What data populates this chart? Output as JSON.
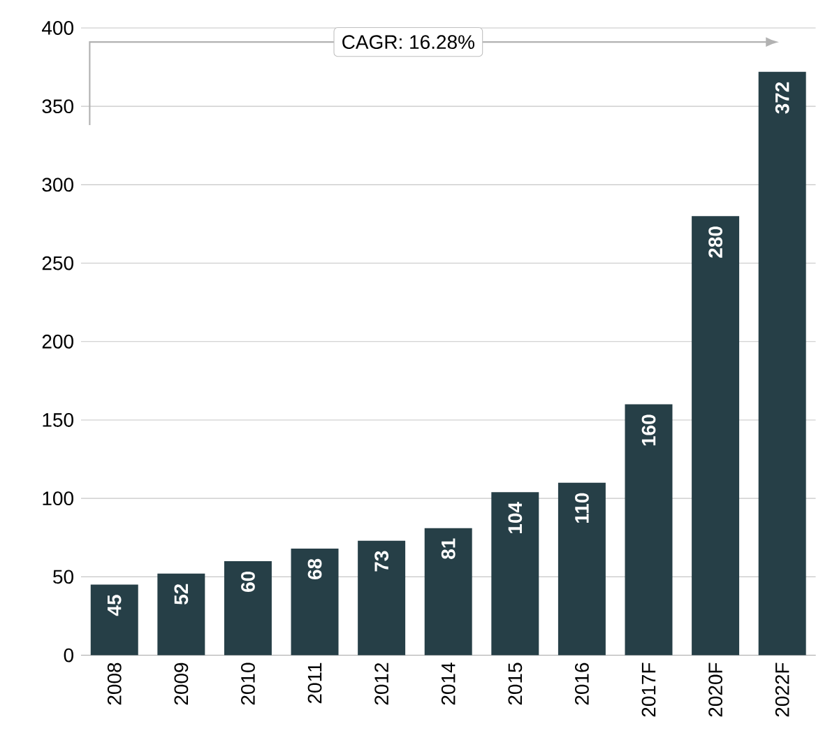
{
  "chart_data": {
    "type": "bar",
    "categories": [
      "2008",
      "2009",
      "2010",
      "2011",
      "2012",
      "2014",
      "2015",
      "2016",
      "2017F",
      "2020F",
      "2022F"
    ],
    "values": [
      45,
      52,
      60,
      68,
      73,
      81,
      104,
      110,
      160,
      280,
      372
    ],
    "color": "#263f47",
    "ylim": [
      0,
      400
    ],
    "yticks": [
      0,
      50,
      100,
      150,
      200,
      250,
      300,
      350,
      400
    ],
    "grid": "y",
    "data_labels": true,
    "annotations": [
      "CAGR: 16.28%"
    ]
  }
}
